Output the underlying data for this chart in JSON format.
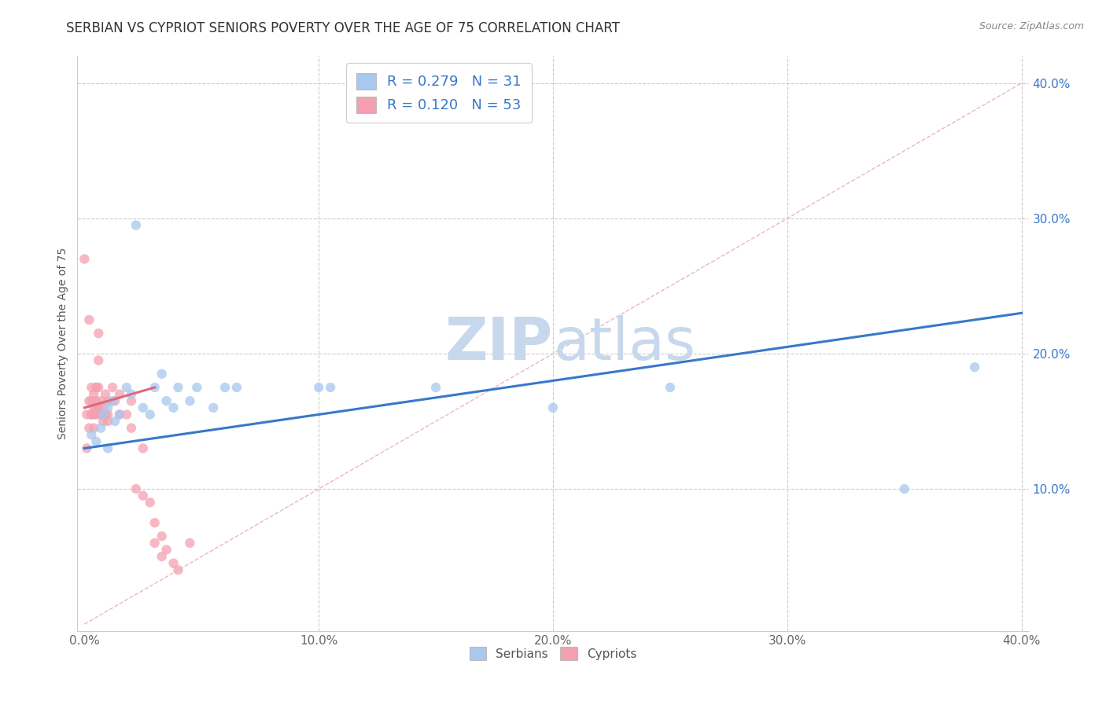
{
  "title": "SERBIAN VS CYPRIOT SENIORS POVERTY OVER THE AGE OF 75 CORRELATION CHART",
  "source_text": "Source: ZipAtlas.com",
  "ylabel": "Seniors Poverty Over the Age of 75",
  "xlim": [
    -0.003,
    0.403
  ],
  "ylim": [
    -0.005,
    0.42
  ],
  "xticks": [
    0.0,
    0.1,
    0.2,
    0.3,
    0.4
  ],
  "yticks_left": [],
  "yticks_right": [
    0.1,
    0.2,
    0.3,
    0.4
  ],
  "xtick_labels": [
    "0.0%",
    "10.0%",
    "20.0%",
    "30.0%",
    "40.0%"
  ],
  "ytick_labels_right": [
    "10.0%",
    "20.0%",
    "30.0%",
    "40.0%"
  ],
  "serbian_color": "#A8C8ED",
  "cypriot_color": "#F4A0B0",
  "serbian_line_color": "#3878C8",
  "cypriot_line_color": "#E06878",
  "diagonal_color": "#E8B8C0",
  "serbian_R": 0.279,
  "serbian_N": 31,
  "cypriot_R": 0.12,
  "cypriot_N": 53,
  "watermark_zip": "ZIP",
  "watermark_atlas": "atlas",
  "watermark_color": "#C8D8EC",
  "grid_color": "#E0E0E0",
  "dashed_grid_color": "#CCCCCC",
  "serbian_x": [
    0.003,
    0.005,
    0.007,
    0.008,
    0.01,
    0.01,
    0.012,
    0.013,
    0.015,
    0.018,
    0.02,
    0.022,
    0.025,
    0.028,
    0.03,
    0.033,
    0.035,
    0.038,
    0.04,
    0.045,
    0.048,
    0.055,
    0.06,
    0.065,
    0.1,
    0.105,
    0.15,
    0.2,
    0.25,
    0.35,
    0.38
  ],
  "serbian_y": [
    0.14,
    0.135,
    0.145,
    0.155,
    0.16,
    0.13,
    0.165,
    0.15,
    0.155,
    0.175,
    0.17,
    0.295,
    0.16,
    0.155,
    0.175,
    0.185,
    0.165,
    0.16,
    0.175,
    0.165,
    0.175,
    0.16,
    0.175,
    0.175,
    0.175,
    0.175,
    0.175,
    0.16,
    0.175,
    0.1,
    0.19
  ],
  "cypriot_x": [
    0.0,
    0.001,
    0.001,
    0.002,
    0.002,
    0.002,
    0.003,
    0.003,
    0.003,
    0.003,
    0.004,
    0.004,
    0.004,
    0.004,
    0.005,
    0.005,
    0.005,
    0.005,
    0.005,
    0.006,
    0.006,
    0.006,
    0.006,
    0.007,
    0.007,
    0.007,
    0.008,
    0.008,
    0.008,
    0.009,
    0.009,
    0.01,
    0.01,
    0.01,
    0.012,
    0.013,
    0.015,
    0.015,
    0.018,
    0.02,
    0.02,
    0.022,
    0.025,
    0.025,
    0.028,
    0.03,
    0.03,
    0.033,
    0.033,
    0.035,
    0.038,
    0.04,
    0.045
  ],
  "cypriot_y": [
    0.27,
    0.155,
    0.13,
    0.165,
    0.145,
    0.225,
    0.165,
    0.155,
    0.155,
    0.175,
    0.17,
    0.16,
    0.155,
    0.145,
    0.175,
    0.175,
    0.165,
    0.16,
    0.155,
    0.215,
    0.195,
    0.175,
    0.16,
    0.165,
    0.155,
    0.155,
    0.16,
    0.155,
    0.15,
    0.17,
    0.155,
    0.165,
    0.155,
    0.15,
    0.175,
    0.165,
    0.155,
    0.17,
    0.155,
    0.165,
    0.145,
    0.1,
    0.13,
    0.095,
    0.09,
    0.075,
    0.06,
    0.065,
    0.05,
    0.055,
    0.045,
    0.04,
    0.06
  ],
  "serbian_trend_x0": 0.0,
  "serbian_trend_y0": 0.13,
  "serbian_trend_x1": 0.4,
  "serbian_trend_y1": 0.23,
  "cypriot_trend_x0": 0.0,
  "cypriot_trend_y0": 0.16,
  "cypriot_trend_x1": 0.03,
  "cypriot_trend_y1": 0.175
}
